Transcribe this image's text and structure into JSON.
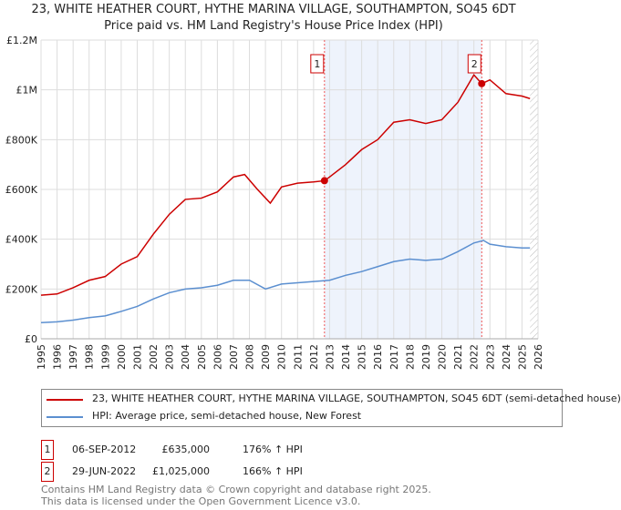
{
  "title": "23, WHITE HEATHER COURT, HYTHE MARINA VILLAGE, SOUTHAMPTON, SO45 6DT",
  "subtitle": "Price paid vs. HM Land Registry's House Price Index (HPI)",
  "chart_data": {
    "type": "line",
    "ylim": [
      0,
      1200000
    ],
    "xlim": [
      1995,
      2026
    ],
    "yticks": [
      {
        "v": 0,
        "label": "£0"
      },
      {
        "v": 200000,
        "label": "£200K"
      },
      {
        "v": 400000,
        "label": "£400K"
      },
      {
        "v": 600000,
        "label": "£600K"
      },
      {
        "v": 800000,
        "label": "£800K"
      },
      {
        "v": 1000000,
        "label": "£1M"
      },
      {
        "v": 1200000,
        "label": "£1.2M"
      }
    ],
    "xticks": [
      "1995",
      "1996",
      "1997",
      "1998",
      "1999",
      "2000",
      "2001",
      "2002",
      "2003",
      "2004",
      "2005",
      "2006",
      "2007",
      "2008",
      "2009",
      "2010",
      "2011",
      "2012",
      "2013",
      "2014",
      "2015",
      "2016",
      "2017",
      "2018",
      "2019",
      "2020",
      "2021",
      "2022",
      "2023",
      "2024",
      "2025",
      "2026"
    ],
    "shaded_range": [
      2012.68,
      2022.49
    ],
    "hatched_from": 2025.5,
    "series": [
      {
        "name": "23, WHITE HEATHER COURT, HYTHE MARINA VILLAGE, SOUTHAMPTON, SO45 6DT (semi-detached house)",
        "color": "#cc0000",
        "x": [
          1995,
          1996,
          1997,
          1998,
          1999,
          2000,
          2001,
          2002,
          2003,
          2004,
          2005,
          2006,
          2007,
          2007.7,
          2008.5,
          2009.3,
          2010,
          2011,
          2012,
          2012.68,
          2013,
          2014,
          2015,
          2016,
          2017,
          2018,
          2019,
          2020,
          2021,
          2022,
          2022.49,
          2023,
          2024,
          2025,
          2025.5
        ],
        "y": [
          175000,
          180000,
          205000,
          235000,
          250000,
          300000,
          330000,
          420000,
          500000,
          560000,
          565000,
          590000,
          650000,
          660000,
          600000,
          545000,
          610000,
          625000,
          630000,
          635000,
          650000,
          700000,
          760000,
          800000,
          870000,
          880000,
          865000,
          880000,
          950000,
          1060000,
          1025000,
          1040000,
          985000,
          975000,
          965000
        ]
      },
      {
        "name": "HPI: Average price, semi-detached house, New Forest",
        "color": "#5b8fd0",
        "x": [
          1995,
          1996,
          1997,
          1998,
          1999,
          2000,
          2001,
          2002,
          2003,
          2004,
          2005,
          2006,
          2007,
          2008,
          2009,
          2010,
          2011,
          2012,
          2013,
          2014,
          2015,
          2016,
          2017,
          2018,
          2019,
          2020,
          2021,
          2022,
          2022.6,
          2023,
          2024,
          2025,
          2025.5
        ],
        "y": [
          65000,
          68000,
          75000,
          85000,
          92000,
          110000,
          130000,
          160000,
          185000,
          200000,
          205000,
          215000,
          235000,
          235000,
          200000,
          220000,
          225000,
          230000,
          235000,
          255000,
          270000,
          290000,
          310000,
          320000,
          315000,
          320000,
          350000,
          385000,
          395000,
          380000,
          370000,
          365000,
          365000
        ]
      }
    ],
    "sales": [
      {
        "id": "1",
        "x": 2012.68,
        "price": 635000
      },
      {
        "id": "2",
        "x": 2022.49,
        "price": 1025000
      }
    ]
  },
  "legend": [
    "23, WHITE HEATHER COURT, HYTHE MARINA VILLAGE, SOUTHAMPTON, SO45 6DT (semi-detached house)",
    "HPI: Average price, semi-detached house, New Forest"
  ],
  "transactions": [
    {
      "id": "1",
      "date": "06-SEP-2012",
      "price": "£635,000",
      "hpi": "176% ↑ HPI"
    },
    {
      "id": "2",
      "date": "29-JUN-2022",
      "price": "£1,025,000",
      "hpi": "166% ↑ HPI"
    }
  ],
  "footer": [
    "Contains HM Land Registry data © Crown copyright and database right 2025.",
    "This data is licensed under the Open Government Licence v3.0."
  ]
}
